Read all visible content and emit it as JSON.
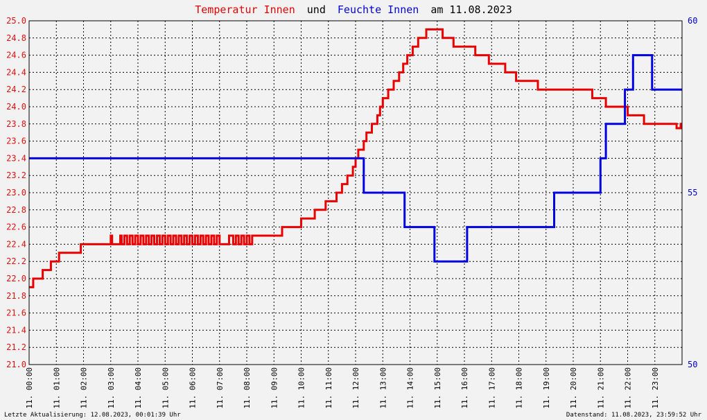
{
  "title": {
    "part1": "Temperatur Innen",
    "part2": "und",
    "part3": "Feuchte Innen",
    "part4": "am 11.08.2023"
  },
  "footer": {
    "left": "Letzte Aktualisierung: 12.08.2023, 00:01:39 Uhr",
    "right": "Datenstand: 11.08.2023, 23:59:52 Uhr"
  },
  "colors": {
    "temperature": "#e80000",
    "humidity": "#0000e0",
    "background": "#f2f2f2",
    "grid": "#000000"
  },
  "chart_data": {
    "type": "line",
    "title": "Temperatur Innen und Feuchte Innen am 11.08.2023",
    "grid": true,
    "x_axis": {
      "range": [
        0,
        24
      ],
      "ticks": [
        "11. 00:00",
        "11. 01:00",
        "11. 02:00",
        "11. 03:00",
        "11. 04:00",
        "11. 05:00",
        "11. 06:00",
        "11. 07:00",
        "11. 08:00",
        "11. 09:00",
        "11. 10:00",
        "11. 11:00",
        "11. 12:00",
        "11. 13:00",
        "11. 14:00",
        "11. 15:00",
        "11. 16:00",
        "11. 17:00",
        "11. 18:00",
        "11. 19:00",
        "11. 20:00",
        "11. 21:00",
        "11. 22:00",
        "11. 23:00"
      ]
    },
    "y_left": {
      "range": [
        21.0,
        25.0
      ],
      "ticks": [
        "21.0",
        "21.2",
        "21.4",
        "21.6",
        "21.8",
        "22.0",
        "22.2",
        "22.4",
        "22.6",
        "22.8",
        "23.0",
        "23.2",
        "23.4",
        "23.6",
        "23.8",
        "24.0",
        "24.2",
        "24.4",
        "24.6",
        "24.8",
        "25.0"
      ]
    },
    "y_right": {
      "range": [
        50,
        60
      ],
      "ticks": [
        "50",
        "55",
        "60"
      ]
    },
    "series": [
      {
        "name": "Temperatur Innen",
        "axis": "left",
        "step": true,
        "color": "#e80000",
        "points": [
          [
            0.0,
            21.9
          ],
          [
            0.15,
            22.0
          ],
          [
            0.5,
            22.1
          ],
          [
            0.8,
            22.2
          ],
          [
            1.1,
            22.3
          ],
          [
            1.9,
            22.4
          ],
          [
            2.9,
            22.4
          ],
          [
            3.0,
            22.5
          ],
          [
            3.05,
            22.4
          ],
          [
            3.3,
            22.4
          ],
          [
            3.35,
            22.5
          ],
          [
            3.4,
            22.4
          ],
          [
            3.5,
            22.5
          ],
          [
            3.6,
            22.4
          ],
          [
            3.7,
            22.5
          ],
          [
            3.8,
            22.4
          ],
          [
            3.9,
            22.5
          ],
          [
            4.0,
            22.4
          ],
          [
            4.1,
            22.5
          ],
          [
            4.2,
            22.4
          ],
          [
            4.3,
            22.5
          ],
          [
            4.4,
            22.4
          ],
          [
            4.5,
            22.5
          ],
          [
            4.6,
            22.4
          ],
          [
            4.7,
            22.5
          ],
          [
            4.8,
            22.4
          ],
          [
            4.9,
            22.5
          ],
          [
            5.0,
            22.4
          ],
          [
            5.1,
            22.5
          ],
          [
            5.2,
            22.4
          ],
          [
            5.3,
            22.5
          ],
          [
            5.4,
            22.4
          ],
          [
            5.5,
            22.5
          ],
          [
            5.6,
            22.4
          ],
          [
            5.7,
            22.5
          ],
          [
            5.8,
            22.4
          ],
          [
            5.9,
            22.5
          ],
          [
            6.0,
            22.4
          ],
          [
            6.1,
            22.5
          ],
          [
            6.2,
            22.4
          ],
          [
            6.3,
            22.5
          ],
          [
            6.4,
            22.4
          ],
          [
            6.5,
            22.5
          ],
          [
            6.6,
            22.4
          ],
          [
            6.7,
            22.5
          ],
          [
            6.8,
            22.4
          ],
          [
            6.9,
            22.5
          ],
          [
            7.0,
            22.4
          ],
          [
            7.3,
            22.4
          ],
          [
            7.35,
            22.5
          ],
          [
            7.5,
            22.4
          ],
          [
            7.6,
            22.5
          ],
          [
            7.7,
            22.4
          ],
          [
            7.8,
            22.5
          ],
          [
            7.9,
            22.4
          ],
          [
            8.0,
            22.5
          ],
          [
            8.1,
            22.4
          ],
          [
            8.2,
            22.5
          ],
          [
            9.3,
            22.6
          ],
          [
            9.5,
            22.6
          ],
          [
            10.0,
            22.7
          ],
          [
            10.5,
            22.8
          ],
          [
            10.9,
            22.9
          ],
          [
            11.3,
            23.0
          ],
          [
            11.5,
            23.1
          ],
          [
            11.7,
            23.2
          ],
          [
            11.9,
            23.3
          ],
          [
            12.0,
            23.4
          ],
          [
            12.1,
            23.5
          ],
          [
            12.3,
            23.6
          ],
          [
            12.4,
            23.7
          ],
          [
            12.6,
            23.8
          ],
          [
            12.8,
            23.9
          ],
          [
            12.9,
            24.0
          ],
          [
            13.0,
            24.1
          ],
          [
            13.2,
            24.2
          ],
          [
            13.4,
            24.3
          ],
          [
            13.6,
            24.4
          ],
          [
            13.75,
            24.5
          ],
          [
            13.9,
            24.6
          ],
          [
            14.1,
            24.7
          ],
          [
            14.3,
            24.8
          ],
          [
            14.6,
            24.9
          ],
          [
            15.2,
            24.8
          ],
          [
            15.6,
            24.7
          ],
          [
            16.4,
            24.6
          ],
          [
            16.9,
            24.5
          ],
          [
            17.5,
            24.4
          ],
          [
            17.9,
            24.3
          ],
          [
            18.7,
            24.2
          ],
          [
            19.0,
            24.2
          ],
          [
            20.7,
            24.1
          ],
          [
            21.2,
            24.0
          ],
          [
            22.0,
            23.9
          ],
          [
            22.6,
            23.8
          ],
          [
            23.3,
            23.8
          ],
          [
            23.8,
            23.75
          ],
          [
            23.95,
            23.8
          ]
        ]
      },
      {
        "name": "Feuchte Innen",
        "axis": "right",
        "step": true,
        "color": "#0000e0",
        "points": [
          [
            0.0,
            56
          ],
          [
            12.3,
            55
          ],
          [
            13.8,
            54
          ],
          [
            14.9,
            53
          ],
          [
            16.1,
            54
          ],
          [
            19.3,
            55
          ],
          [
            21.0,
            56
          ],
          [
            21.2,
            57
          ],
          [
            21.9,
            58
          ],
          [
            22.2,
            59
          ],
          [
            22.9,
            58
          ],
          [
            23.98,
            58
          ]
        ]
      }
    ]
  }
}
